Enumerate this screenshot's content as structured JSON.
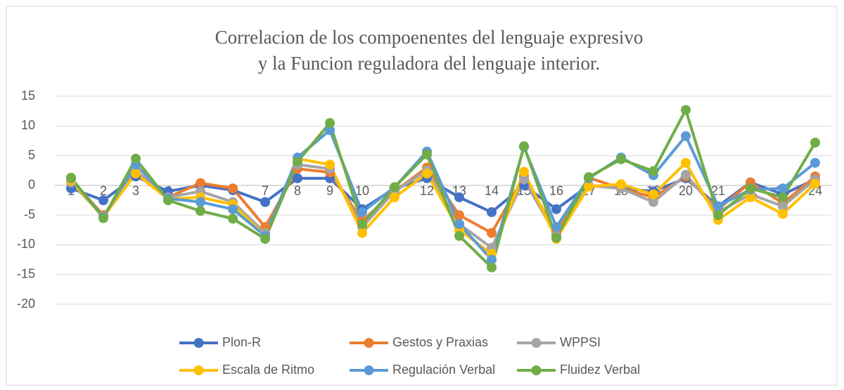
{
  "chart_data": {
    "type": "line",
    "title": [
      "Correlacion de los compoenentes del lenguaje expresivo",
      "y la Funcion reguladora del lenguaje interior."
    ],
    "categories": [
      "1",
      "2",
      "3",
      "4",
      "5",
      "6",
      "7",
      "8",
      "9",
      "10",
      "11",
      "12",
      "13",
      "14",
      "15",
      "16",
      "17",
      "18",
      "19",
      "20",
      "21",
      "22",
      "23",
      "24"
    ],
    "series": [
      {
        "name": "Plon-R",
        "color": "#4472c4",
        "values": [
          -0.5,
          -2.5,
          1.5,
          -1,
          0,
          -0.8,
          -2.8,
          1.2,
          1.2,
          -4,
          -0.5,
          1.2,
          -2,
          -4.5,
          0,
          -4,
          0,
          -0.5,
          -1,
          1.2,
          -3.5,
          0.5,
          -1.5,
          1
        ]
      },
      {
        "name": "Gestos y Praxias",
        "color": "#ed7d31",
        "values": [
          1,
          -5,
          2,
          -2,
          0.4,
          -0.5,
          -7,
          2.8,
          2.2,
          -6,
          -1,
          3,
          -5,
          -8,
          1.5,
          -8,
          1.3,
          -0.5,
          -2,
          1.5,
          -4,
          0.5,
          -3,
          1.5
        ]
      },
      {
        "name": "WPPSI",
        "color": "#a5a5a5",
        "values": [
          0.5,
          -5.2,
          2.5,
          -2,
          -1,
          -2.8,
          -8,
          3.5,
          2.8,
          -7,
          -1,
          2.5,
          -6.5,
          -10.5,
          1,
          -8.5,
          0,
          -0.5,
          -2.8,
          1.8,
          -4.5,
          -1.5,
          -3.5,
          1
        ]
      },
      {
        "name": "Escala de Ritmo",
        "color": "#ffc000",
        "values": [
          0.8,
          -5.3,
          2,
          -2.3,
          -2,
          -3.2,
          -8.5,
          4.5,
          3.5,
          -8,
          -2,
          2,
          -7.5,
          -11.5,
          2.3,
          -9,
          -0.2,
          0.2,
          -1.5,
          3.8,
          -5.8,
          -2,
          -4.8,
          0.3
        ]
      },
      {
        "name": "Regulación Verbal",
        "color": "#5b9bd5",
        "values": [
          1.2,
          -5.3,
          3.5,
          -2.2,
          -2.8,
          -4,
          -8.5,
          4.7,
          9.3,
          -4.5,
          -0.3,
          5.7,
          -6.5,
          -12.5,
          6.5,
          -7,
          1.2,
          4.7,
          1.7,
          8.3,
          -3.5,
          -0.7,
          -0.5,
          3.8
        ]
      },
      {
        "name": "Fluidez Verbal",
        "color": "#70ad47",
        "values": [
          1.3,
          -5.5,
          4.5,
          -2.5,
          -4.3,
          -5.6,
          -9,
          4,
          10.5,
          -6.5,
          -0.3,
          5.2,
          -8.5,
          -13.8,
          6.6,
          -8.8,
          1.4,
          4.4,
          2.4,
          12.7,
          -5,
          -0.5,
          -2,
          7.2
        ]
      }
    ],
    "ylim": [
      -20,
      15
    ],
    "yticks": [
      -20,
      -15,
      -10,
      -5,
      0,
      5,
      10,
      15
    ],
    "grid": true,
    "legend": "bottom"
  }
}
